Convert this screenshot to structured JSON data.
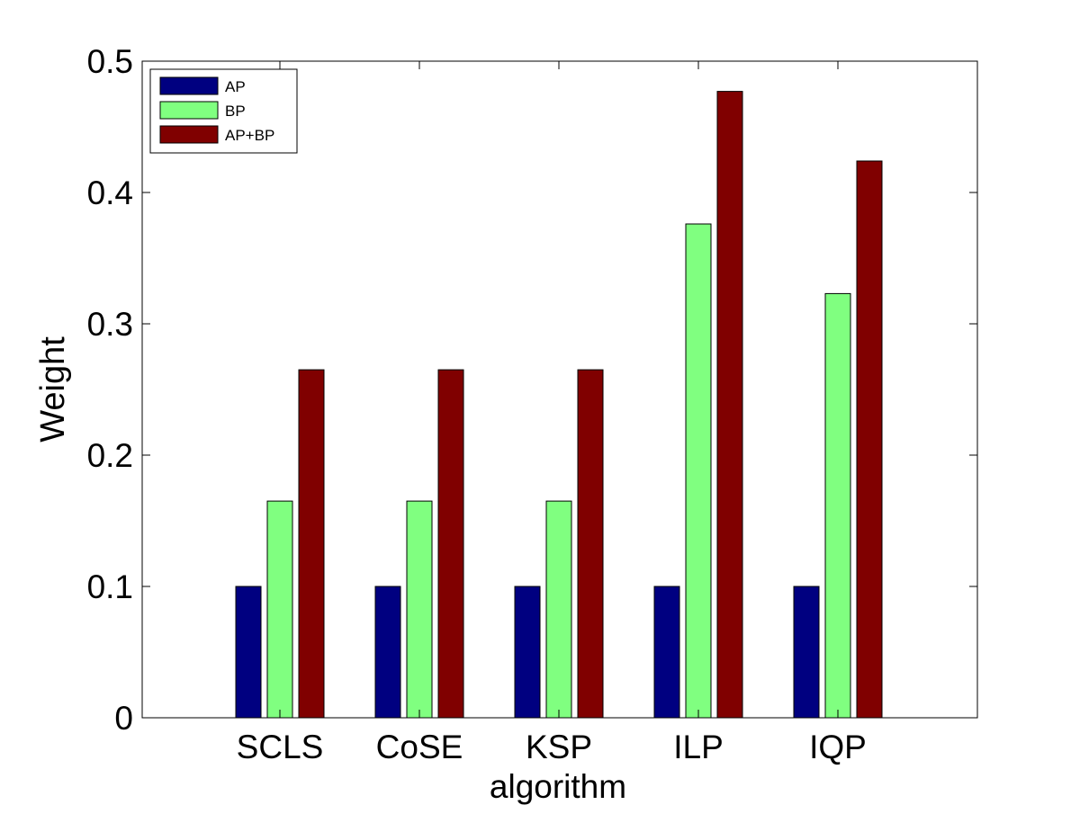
{
  "chart_data": {
    "type": "bar",
    "title": "",
    "xlabel": "algorithm",
    "ylabel": "Weight",
    "categories": [
      "SCLS",
      "CoSE",
      "KSP",
      "ILP",
      "IQP"
    ],
    "ylim": [
      0,
      0.5
    ],
    "yticks": [
      "0",
      "0.1",
      "0.2",
      "0.3",
      "0.4",
      "0.5"
    ],
    "grid": false,
    "legend_position": "top-left",
    "series": [
      {
        "name": "AP",
        "color": "#000080",
        "values": [
          0.1,
          0.1,
          0.1,
          0.1,
          0.1
        ]
      },
      {
        "name": "BP",
        "color": "#80ff80",
        "values": [
          0.165,
          0.165,
          0.165,
          0.376,
          0.323
        ]
      },
      {
        "name": "AP+BP",
        "color": "#800000",
        "values": [
          0.265,
          0.265,
          0.265,
          0.477,
          0.424
        ]
      }
    ]
  }
}
